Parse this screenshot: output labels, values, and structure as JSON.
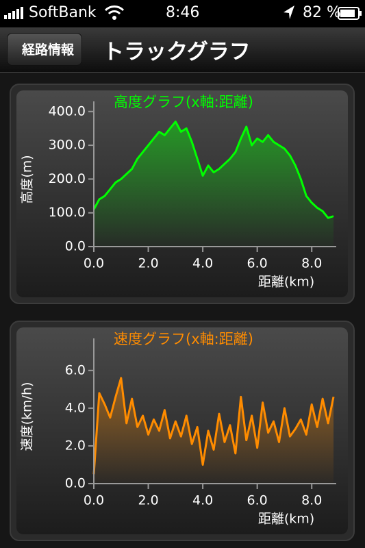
{
  "status_bar": {
    "carrier": "SoftBank",
    "time": "8:46",
    "battery": "82 %"
  },
  "nav_bar": {
    "back": "経路情報",
    "title": "トラックグラフ"
  },
  "chart_data": [
    {
      "type": "line",
      "title": "高度グラフ(x軸:距離)",
      "x_label": "距離(km)",
      "y_label": "高度(m)",
      "color": "#00ff00",
      "x": [
        0,
        0.2,
        0.4,
        0.6,
        0.8,
        1.0,
        1.2,
        1.4,
        1.6,
        1.8,
        2.0,
        2.2,
        2.4,
        2.6,
        2.8,
        3.0,
        3.2,
        3.4,
        3.6,
        3.8,
        4.0,
        4.2,
        4.4,
        4.6,
        4.8,
        5.0,
        5.2,
        5.4,
        5.6,
        5.8,
        6.0,
        6.2,
        6.4,
        6.6,
        6.8,
        7.0,
        7.2,
        7.4,
        7.6,
        7.8,
        8.0,
        8.2,
        8.4,
        8.6,
        8.8
      ],
      "values": [
        110,
        140,
        150,
        170,
        190,
        200,
        215,
        230,
        260,
        280,
        300,
        320,
        340,
        330,
        350,
        370,
        340,
        350,
        310,
        260,
        210,
        240,
        220,
        230,
        245,
        260,
        280,
        320,
        355,
        300,
        320,
        310,
        330,
        310,
        300,
        290,
        270,
        240,
        200,
        150,
        130,
        115,
        105,
        85,
        90
      ],
      "xlim": [
        0,
        8.9
      ],
      "ylim": [
        0,
        430
      ],
      "xticks": [
        {
          "value": 0,
          "label": "0.0"
        },
        {
          "value": 2,
          "label": "2.0"
        },
        {
          "value": 4,
          "label": "4.0"
        },
        {
          "value": 6,
          "label": "6.0"
        },
        {
          "value": 8,
          "label": "8.0"
        }
      ],
      "yticks": [
        {
          "value": 0,
          "label": "0.0"
        },
        {
          "value": 100,
          "label": "100.0"
        },
        {
          "value": 200,
          "label": "200.0"
        },
        {
          "value": 300,
          "label": "300.0"
        },
        {
          "value": 400,
          "label": "400.0"
        }
      ]
    },
    {
      "type": "line",
      "title": "速度グラフ(x軸:距離)",
      "x_label": "距離(km)",
      "y_label": "速度(km/h)",
      "color": "#ff8c00",
      "x": [
        0,
        0.2,
        0.4,
        0.6,
        0.8,
        1.0,
        1.2,
        1.4,
        1.6,
        1.8,
        2.0,
        2.2,
        2.4,
        2.6,
        2.8,
        3.0,
        3.2,
        3.4,
        3.6,
        3.8,
        4.0,
        4.2,
        4.4,
        4.6,
        4.8,
        5.0,
        5.2,
        5.4,
        5.6,
        5.8,
        6.0,
        6.2,
        6.4,
        6.6,
        6.8,
        7.0,
        7.2,
        7.4,
        7.6,
        7.8,
        8.0,
        8.2,
        8.4,
        8.6,
        8.8
      ],
      "values": [
        0.5,
        4.8,
        4.2,
        3.5,
        4.6,
        5.6,
        3.2,
        4.5,
        3.0,
        3.6,
        2.6,
        3.4,
        2.8,
        3.9,
        2.4,
        3.3,
        2.5,
        3.6,
        2.1,
        3.0,
        1.0,
        2.8,
        1.8,
        3.7,
        2.2,
        3.1,
        1.6,
        4.6,
        2.3,
        3.6,
        1.9,
        4.3,
        2.7,
        3.3,
        2.2,
        4.0,
        2.5,
        2.9,
        3.4,
        2.6,
        4.2,
        3.0,
        4.5,
        3.2,
        4.6
      ],
      "xlim": [
        0,
        8.9
      ],
      "ylim": [
        0,
        7.7
      ],
      "xticks": [
        {
          "value": 0,
          "label": "0.0"
        },
        {
          "value": 2,
          "label": "2.0"
        },
        {
          "value": 4,
          "label": "4.0"
        },
        {
          "value": 6,
          "label": "6.0"
        },
        {
          "value": 8,
          "label": "8.0"
        }
      ],
      "yticks": [
        {
          "value": 0,
          "label": "0.0"
        },
        {
          "value": 2,
          "label": "2.0"
        },
        {
          "value": 4,
          "label": "4.0"
        },
        {
          "value": 6,
          "label": "6.0"
        }
      ]
    }
  ]
}
